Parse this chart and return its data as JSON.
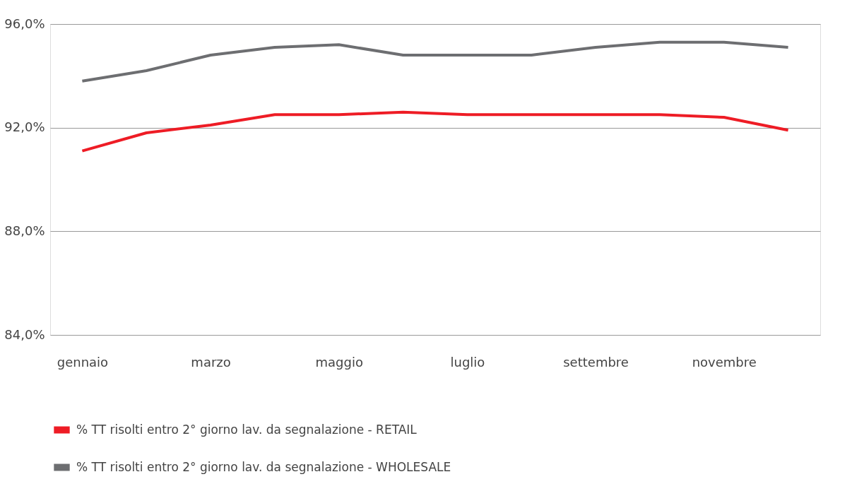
{
  "chart_data": {
    "type": "line",
    "categories": [
      "gennaio",
      null,
      "marzo",
      null,
      "maggio",
      null,
      "luglio",
      null,
      "settembre",
      null,
      "novembre",
      null
    ],
    "series": [
      {
        "name": "% TT risolti entro 2° giorno lav. da segnalazione - RETAIL",
        "color": "#ee1c25",
        "values": [
          91.1,
          91.8,
          92.1,
          92.5,
          92.5,
          92.6,
          92.5,
          92.5,
          92.5,
          92.5,
          92.4,
          91.9
        ]
      },
      {
        "name": "% TT risolti entro 2° giorno lav. da segnalazione - WHOLESALE",
        "color": "#6d6e71",
        "values": [
          93.8,
          94.2,
          94.8,
          95.1,
          95.2,
          94.8,
          94.8,
          94.8,
          95.1,
          95.3,
          95.3,
          95.1
        ]
      }
    ],
    "ylim": [
      84,
      96
    ],
    "yticks": [
      {
        "value": 84,
        "label": "84,0%"
      },
      {
        "value": 88,
        "label": "88,0%"
      },
      {
        "value": 92,
        "label": "92,0%"
      },
      {
        "value": 96,
        "label": "96,0%"
      }
    ],
    "grid": "y",
    "legend": "bottom",
    "marker": "none",
    "line_style": "solid"
  }
}
